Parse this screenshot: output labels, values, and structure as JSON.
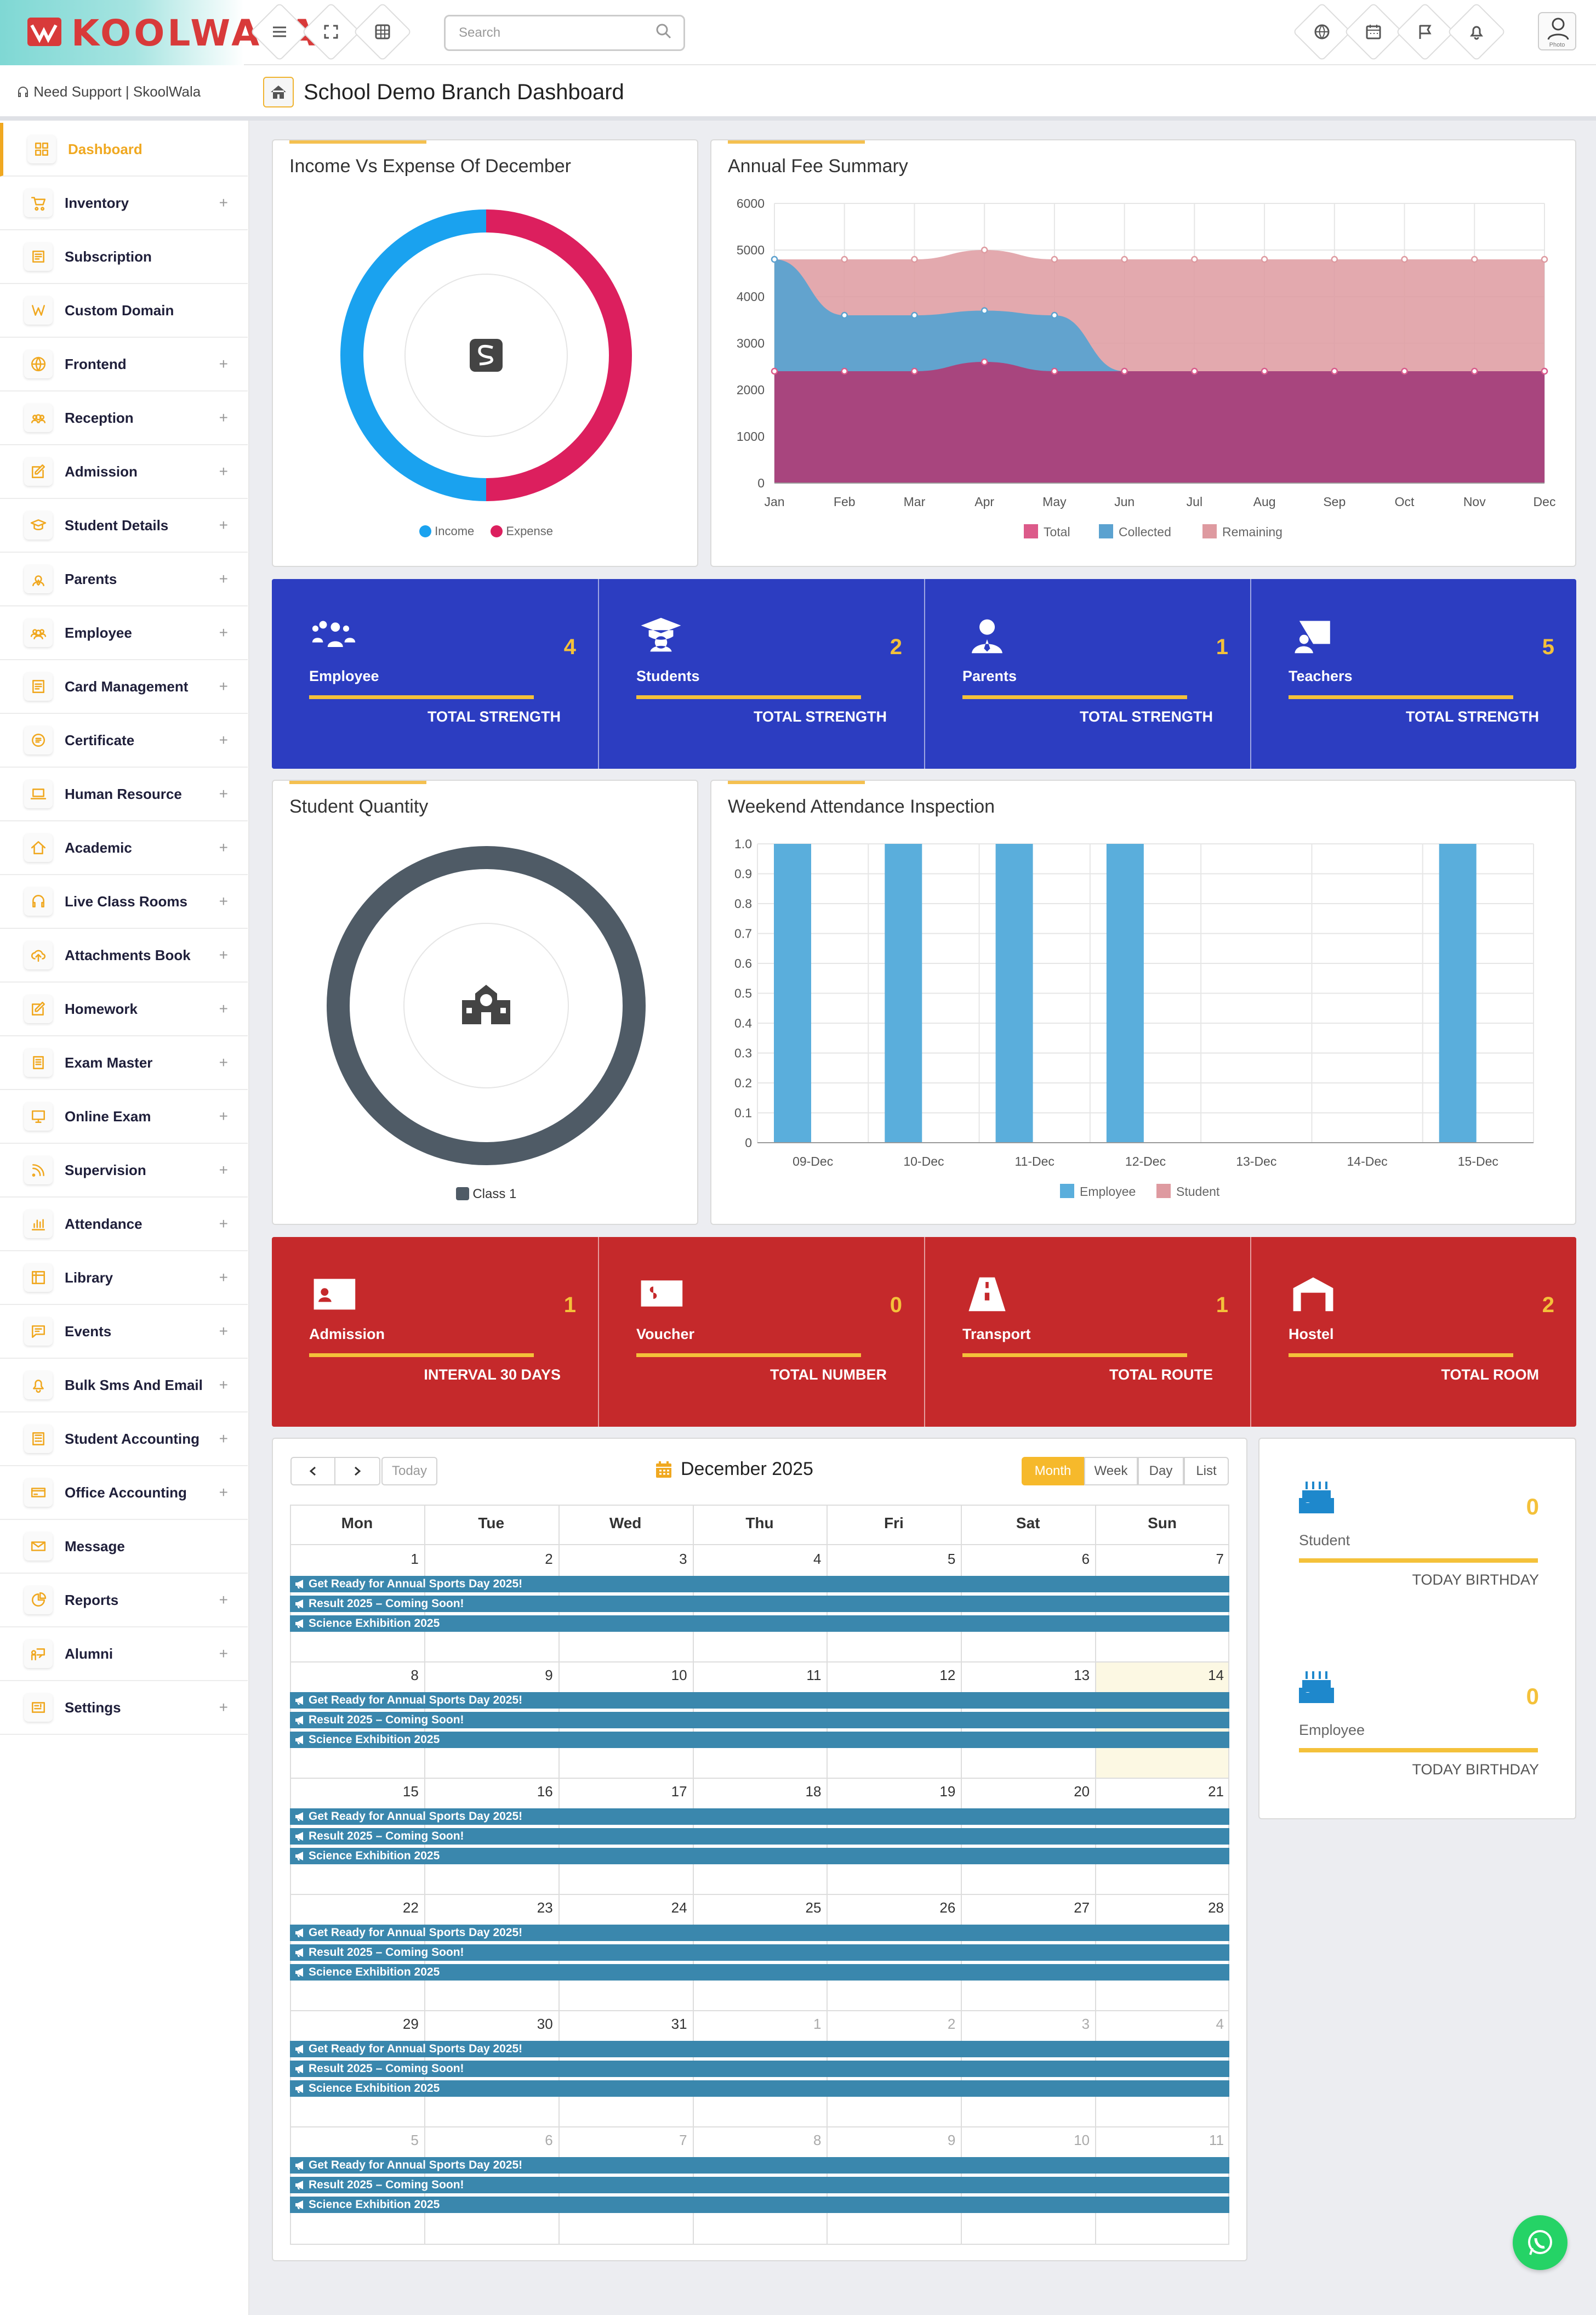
{
  "header": {
    "brand": "KOOLWALA",
    "search_placeholder": "Search",
    "support_text": "Need Support | SkoolWala",
    "page_title": "School Demo Branch Dashboard",
    "avatar_caption": "Photo"
  },
  "sidebar": {
    "items": [
      {
        "label": "Dashboard",
        "icon": "grid-icon",
        "expandable": false,
        "active": true
      },
      {
        "label": "Inventory",
        "icon": "cart-icon",
        "expandable": true
      },
      {
        "label": "Subscription",
        "icon": "subscription-icon",
        "expandable": false
      },
      {
        "label": "Custom Domain",
        "icon": "domain-icon",
        "expandable": false
      },
      {
        "label": "Frontend",
        "icon": "globe-icon",
        "expandable": true
      },
      {
        "label": "Reception",
        "icon": "users-icon",
        "expandable": true
      },
      {
        "label": "Admission",
        "icon": "edit-icon",
        "expandable": true
      },
      {
        "label": "Student Details",
        "icon": "graduate-icon",
        "expandable": true
      },
      {
        "label": "Parents",
        "icon": "user-tie-icon",
        "expandable": true
      },
      {
        "label": "Employee",
        "icon": "group-icon",
        "expandable": true
      },
      {
        "label": "Card Management",
        "icon": "card-icon",
        "expandable": true
      },
      {
        "label": "Certificate",
        "icon": "certificate-icon",
        "expandable": true
      },
      {
        "label": "Human Resource",
        "icon": "laptop-icon",
        "expandable": true
      },
      {
        "label": "Academic",
        "icon": "home-icon",
        "expandable": true
      },
      {
        "label": "Live Class Rooms",
        "icon": "headset-icon",
        "expandable": true
      },
      {
        "label": "Attachments Book",
        "icon": "cloud-upload-icon",
        "expandable": true
      },
      {
        "label": "Homework",
        "icon": "pencil-icon",
        "expandable": true
      },
      {
        "label": "Exam Master",
        "icon": "book-icon",
        "expandable": true
      },
      {
        "label": "Online Exam",
        "icon": "monitor-icon",
        "expandable": true
      },
      {
        "label": "Supervision",
        "icon": "rss-icon",
        "expandable": true
      },
      {
        "label": "Attendance",
        "icon": "chart-bars-icon",
        "expandable": true
      },
      {
        "label": "Library",
        "icon": "library-icon",
        "expandable": true
      },
      {
        "label": "Events",
        "icon": "chat-icon",
        "expandable": true
      },
      {
        "label": "Bulk Sms And Email",
        "icon": "bell-icon",
        "expandable": true
      },
      {
        "label": "Student Accounting",
        "icon": "calculator-icon",
        "expandable": true
      },
      {
        "label": "Office Accounting",
        "icon": "credit-card-icon",
        "expandable": true
      },
      {
        "label": "Message",
        "icon": "envelope-icon",
        "expandable": false
      },
      {
        "label": "Reports",
        "icon": "pie-icon",
        "expandable": true
      },
      {
        "label": "Alumni",
        "icon": "alumni-icon",
        "expandable": true
      },
      {
        "label": "Settings",
        "icon": "settings-icon",
        "expandable": true
      }
    ]
  },
  "income_card": {
    "title": "Income Vs Expense Of December",
    "legend": [
      "Income",
      "Expense"
    ],
    "colors": [
      "#1aa2ef",
      "#dc1f5e"
    ]
  },
  "fee_card": {
    "title": "Annual Fee Summary"
  },
  "quantity_card": {
    "title": "Student Quantity",
    "legend": [
      "Class 1"
    ],
    "color": "#4f5b66"
  },
  "attendance_card": {
    "title": "Weekend Attendance Inspection"
  },
  "chart_data": [
    {
      "type": "pie",
      "title": "Income Vs Expense Of December",
      "categories": [
        "Income",
        "Expense"
      ],
      "values": [
        50,
        50
      ]
    },
    {
      "type": "area",
      "title": "Annual Fee Summary",
      "categories": [
        "Jan",
        "Feb",
        "Mar",
        "Apr",
        "May",
        "Jun",
        "Jul",
        "Aug",
        "Sep",
        "Oct",
        "Nov",
        "Dec"
      ],
      "ylim": [
        0,
        6000
      ],
      "yticks": [
        0,
        1000,
        2000,
        3000,
        4000,
        5000,
        6000
      ],
      "series": [
        {
          "name": "Total",
          "color": "#dc5a8a",
          "values": [
            2400,
            2400,
            2400,
            2600,
            2400,
            2400,
            2400,
            2400,
            2400,
            2400,
            2400,
            2400
          ]
        },
        {
          "name": "Collected",
          "color": "#5ba2d0",
          "values": [
            4800,
            3600,
            3600,
            3700,
            3600,
            2400,
            2400,
            2400,
            2400,
            2400,
            2400,
            2400
          ]
        },
        {
          "name": "Remaining",
          "color": "#de9aa0",
          "values": [
            4800,
            4800,
            4800,
            5000,
            4800,
            4800,
            4800,
            4800,
            4800,
            4800,
            4800,
            4800
          ]
        }
      ]
    },
    {
      "type": "pie",
      "title": "Student Quantity",
      "categories": [
        "Class 1"
      ],
      "values": [
        1
      ]
    },
    {
      "type": "bar",
      "title": "Weekend Attendance Inspection",
      "categories": [
        "09-Dec",
        "10-Dec",
        "11-Dec",
        "12-Dec",
        "13-Dec",
        "14-Dec",
        "15-Dec"
      ],
      "ylim": [
        0,
        1.0
      ],
      "yticks": [
        "0",
        "0.1",
        "0.2",
        "0.3",
        "0.4",
        "0.5",
        "0.6",
        "0.7",
        "0.8",
        "0.9",
        "1.0"
      ],
      "series": [
        {
          "name": "Employee",
          "color": "#5aaedc",
          "values": [
            1,
            1,
            1,
            1,
            0,
            0,
            1
          ]
        },
        {
          "name": "Student",
          "color": "#de9aa0",
          "values": [
            0,
            0,
            0,
            0,
            0,
            0,
            0
          ]
        }
      ]
    }
  ],
  "strength": [
    {
      "name": "Employee",
      "value": "4",
      "sub": "TOTAL STRENGTH",
      "icon": "group-icon"
    },
    {
      "name": "Students",
      "value": "2",
      "sub": "TOTAL STRENGTH",
      "icon": "graduate-icon"
    },
    {
      "name": "Parents",
      "value": "1",
      "sub": "TOTAL STRENGTH",
      "icon": "user-tie-icon"
    },
    {
      "name": "Teachers",
      "value": "5",
      "sub": "TOTAL STRENGTH",
      "icon": "chalkboard-icon"
    }
  ],
  "totals": [
    {
      "name": "Admission",
      "value": "1",
      "sub": "INTERVAL 30 DAYS",
      "icon": "id-card-icon"
    },
    {
      "name": "Voucher",
      "value": "0",
      "sub": "TOTAL NUMBER",
      "icon": "money-bill-icon"
    },
    {
      "name": "Transport",
      "value": "1",
      "sub": "TOTAL ROUTE",
      "icon": "road-icon"
    },
    {
      "name": "Hostel",
      "value": "2",
      "sub": "TOTAL ROOM",
      "icon": "warehouse-icon"
    }
  ],
  "calendar": {
    "title": "December 2025",
    "today_label": "Today",
    "views": [
      "Month",
      "Week",
      "Day",
      "List"
    ],
    "weekdays": [
      "Mon",
      "Tue",
      "Wed",
      "Thu",
      "Fri",
      "Sat",
      "Sun"
    ],
    "weeks": [
      [
        "1",
        "2",
        "3",
        "4",
        "5",
        "6",
        "7"
      ],
      [
        "8",
        "9",
        "10",
        "11",
        "12",
        "13",
        "14"
      ],
      [
        "15",
        "16",
        "17",
        "18",
        "19",
        "20",
        "21"
      ],
      [
        "22",
        "23",
        "24",
        "25",
        "26",
        "27",
        "28"
      ],
      [
        "29",
        "30",
        "31",
        "1",
        "2",
        "3",
        "4"
      ],
      [
        "5",
        "6",
        "7",
        "8",
        "9",
        "10",
        "11"
      ]
    ],
    "events": [
      "Get Ready for Annual Sports Day 2025!",
      "Result 2025 – Coming Soon!",
      "Science Exhibition 2025"
    ]
  },
  "birthdays": [
    {
      "name": "Student",
      "value": "0",
      "sub": "TODAY BIRTHDAY"
    },
    {
      "name": "Employee",
      "value": "0",
      "sub": "TODAY BIRTHDAY"
    }
  ]
}
